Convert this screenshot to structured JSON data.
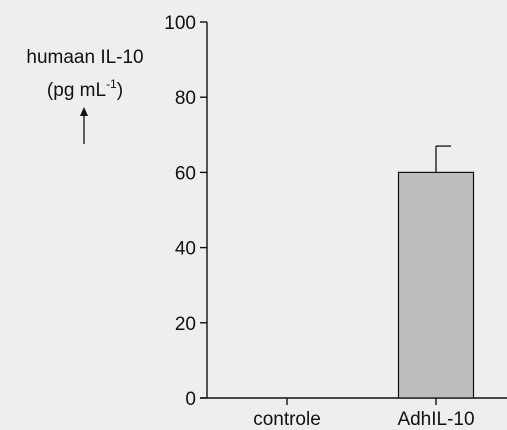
{
  "chart_data": {
    "type": "bar",
    "ylabel_line1": "humaan IL-10",
    "ylabel_unit_prefix": "(pg mL",
    "ylabel_unit_exponent": "-1",
    "ylabel_unit_suffix": ")",
    "categories": [
      "controle",
      "AdhIL-10"
    ],
    "values": [
      0,
      60
    ],
    "errors": [
      0,
      7
    ],
    "ylim": [
      0,
      100
    ],
    "yticks": [
      0,
      20,
      40,
      60,
      80,
      100
    ],
    "bar_color": "#bdbdbd",
    "background": "#eeeeee"
  }
}
